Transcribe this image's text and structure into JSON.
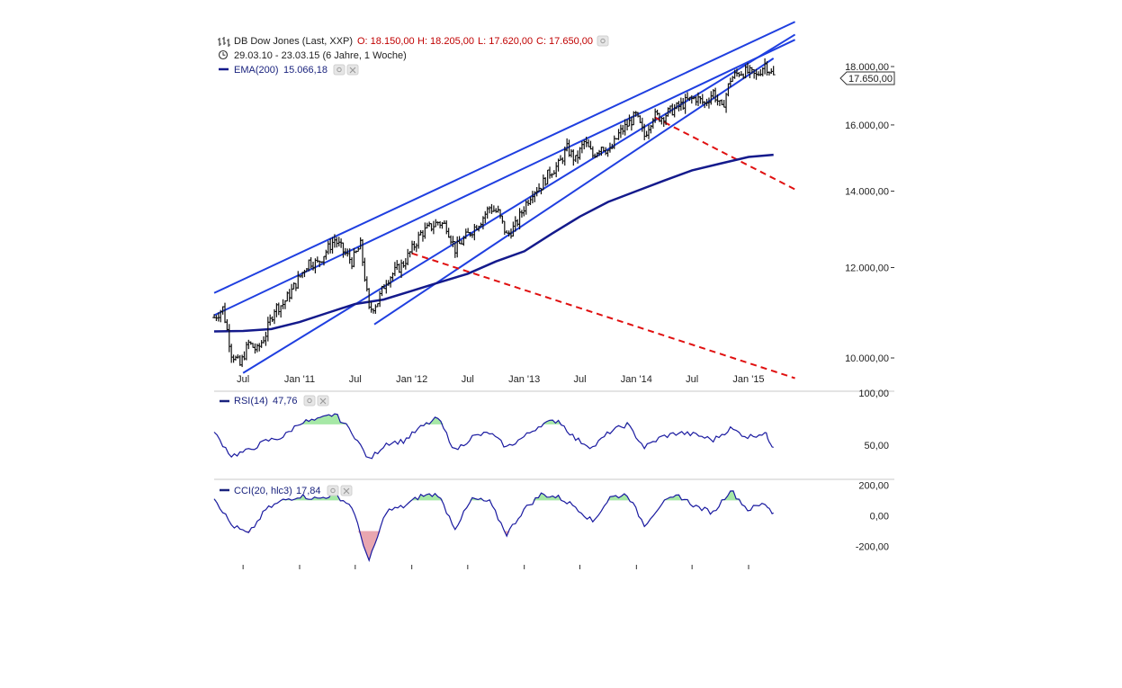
{
  "header": {
    "instrument": "DB Dow Jones (Last, XXP)",
    "open": "O: 18.150,00",
    "high": "H: 18.205,00",
    "low": "L: 17.620,00",
    "close": "C: 17.650,00",
    "period": "29.03.10 - 23.03.15 (6 Jahre, 1 Woche)",
    "ema_label": "EMA(200)",
    "ema_value": "15.066,18"
  },
  "rsi": {
    "label": "RSI(14)",
    "value": "47,76"
  },
  "cci": {
    "label": "CCI(20, hlc3)",
    "value": "17,84"
  },
  "colors": {
    "price": "#111111",
    "trendline": "#1f3fe0",
    "ema": "#141a8c",
    "dashed": "#e01010",
    "indicator": "#1a1aa0",
    "fill_high": "#a6e8a6",
    "fill_low": "#e8a6b0"
  },
  "icons": [
    "ohlc-icon",
    "clock-icon",
    "settings-icon",
    "close-icon"
  ],
  "chart_data": [
    {
      "type": "line",
      "panel": "price",
      "y_scale": "log",
      "ylim": [
        9500,
        19500
      ],
      "y_ticks": [
        "18.000,00",
        "16.000,00",
        "14.000,00",
        "12.000,00",
        "10.000,00"
      ],
      "y_tick_values": [
        18000,
        16000,
        14000,
        12000,
        10000
      ],
      "last_price_label": "17.650,00",
      "last_price": 17650,
      "x_range": [
        "2010-03-29",
        "2015-03-23"
      ],
      "x_ticks": [
        "Jul",
        "Jan '11",
        "Jul",
        "Jan '12",
        "Jul",
        "Jan '13",
        "Jul",
        "Jan '14",
        "Jul",
        "Jan '15"
      ],
      "x_tick_dates": [
        "2010-07-01",
        "2011-01-01",
        "2011-07-01",
        "2012-01-01",
        "2012-07-01",
        "2013-01-01",
        "2013-07-01",
        "2014-01-01",
        "2014-07-01",
        "2015-01-01"
      ],
      "series": [
        {
          "name": "DB Dow Jones",
          "style": "ohlc",
          "x": [
            "2010-03-29",
            "2010-04-26",
            "2010-05-24",
            "2010-06-21",
            "2010-07-19",
            "2010-08-16",
            "2010-09-13",
            "2010-10-11",
            "2010-11-08",
            "2010-12-06",
            "2011-01-03",
            "2011-01-31",
            "2011-02-28",
            "2011-03-28",
            "2011-04-25",
            "2011-05-23",
            "2011-06-20",
            "2011-07-18",
            "2011-08-15",
            "2011-09-12",
            "2011-10-10",
            "2011-11-07",
            "2011-12-05",
            "2012-01-02",
            "2012-01-30",
            "2012-02-27",
            "2012-03-26",
            "2012-04-23",
            "2012-05-21",
            "2012-06-18",
            "2012-07-16",
            "2012-08-13",
            "2012-09-10",
            "2012-10-08",
            "2012-11-05",
            "2012-12-03",
            "2012-12-31",
            "2013-01-28",
            "2013-02-25",
            "2013-03-25",
            "2013-04-22",
            "2013-05-20",
            "2013-06-17",
            "2013-07-15",
            "2013-08-12",
            "2013-09-09",
            "2013-10-07",
            "2013-11-04",
            "2013-12-02",
            "2013-12-30",
            "2014-01-27",
            "2014-02-24",
            "2014-03-24",
            "2014-04-21",
            "2014-05-19",
            "2014-06-16",
            "2014-07-14",
            "2014-08-11",
            "2014-09-08",
            "2014-10-06",
            "2014-11-03",
            "2014-12-01",
            "2014-12-29",
            "2015-01-26",
            "2015-02-23",
            "2015-03-23"
          ],
          "close": [
            10850,
            11050,
            10100,
            9850,
            10300,
            10150,
            10500,
            11050,
            11150,
            11450,
            11800,
            12150,
            12100,
            12400,
            12700,
            12400,
            12150,
            12550,
            11000,
            11200,
            11700,
            11900,
            12100,
            12450,
            12850,
            13000,
            13150,
            13050,
            12450,
            12700,
            12950,
            13200,
            13550,
            13400,
            12800,
            13050,
            13550,
            14000,
            14150,
            14550,
            14750,
            15250,
            14900,
            15450,
            15050,
            15350,
            15150,
            15700,
            16000,
            16300,
            15650,
            16300,
            16250,
            16450,
            16600,
            16800,
            16900,
            16700,
            17100,
            16500,
            17550,
            17800,
            17800,
            17650,
            18100,
            17650
          ]
        },
        {
          "name": "EMA(200)",
          "x": [
            "2010-03-29",
            "2010-07-01",
            "2010-10-01",
            "2011-01-01",
            "2011-04-01",
            "2011-07-01",
            "2011-10-01",
            "2012-01-01",
            "2012-04-01",
            "2012-07-01",
            "2012-10-01",
            "2013-01-01",
            "2013-04-01",
            "2013-07-01",
            "2013-10-01",
            "2014-01-01",
            "2014-04-01",
            "2014-07-01",
            "2014-10-01",
            "2015-01-01",
            "2015-03-23"
          ],
          "values": [
            10550,
            10560,
            10600,
            10750,
            10950,
            11150,
            11250,
            11450,
            11650,
            11850,
            12150,
            12400,
            12850,
            13300,
            13700,
            14000,
            14300,
            14600,
            14800,
            15000,
            15066
          ]
        }
      ],
      "trendlines": [
        {
          "style": "solid",
          "from": [
            "2010-03-29",
            11400
          ],
          "to": [
            "2015-06-01",
            19700
          ]
        },
        {
          "style": "solid",
          "from": [
            "2010-03-29",
            10900
          ],
          "to": [
            "2015-06-01",
            19000
          ]
        },
        {
          "style": "solid",
          "from": [
            "2010-07-01",
            9700
          ],
          "to": [
            "2015-06-01",
            19200
          ]
        },
        {
          "style": "solid",
          "from": [
            "2011-09-01",
            10700
          ],
          "to": [
            "2015-03-23",
            18300
          ]
        },
        {
          "style": "dashed",
          "from": [
            "2012-01-01",
            12350
          ],
          "to": [
            "2015-06-01",
            9600
          ]
        },
        {
          "style": "dashed",
          "from": [
            "2014-03-01",
            16250
          ],
          "to": [
            "2015-06-01",
            14050
          ]
        }
      ]
    },
    {
      "type": "line",
      "panel": "RSI",
      "series_name": "RSI(14)",
      "ylim": [
        20,
        100
      ],
      "y_ticks": [
        "100,00",
        "50,00"
      ],
      "y_tick_values": [
        100,
        50
      ],
      "x": [
        "2010-03-29",
        "2010-05-24",
        "2010-07-19",
        "2010-09-13",
        "2010-11-08",
        "2011-01-03",
        "2011-02-28",
        "2011-04-25",
        "2011-06-20",
        "2011-08-15",
        "2011-10-10",
        "2011-12-05",
        "2012-01-30",
        "2012-03-26",
        "2012-05-21",
        "2012-07-16",
        "2012-09-10",
        "2012-11-05",
        "2012-12-31",
        "2013-02-25",
        "2013-04-22",
        "2013-06-17",
        "2013-08-12",
        "2013-10-07",
        "2013-12-02",
        "2014-01-27",
        "2014-03-24",
        "2014-05-19",
        "2014-07-14",
        "2014-09-08",
        "2014-11-03",
        "2014-12-29",
        "2015-02-23",
        "2015-03-23"
      ],
      "values": [
        62,
        40,
        45,
        54,
        58,
        72,
        74,
        80,
        63,
        36,
        52,
        54,
        67,
        76,
        45,
        58,
        62,
        48,
        58,
        70,
        74,
        56,
        48,
        63,
        70,
        48,
        58,
        62,
        60,
        55,
        66,
        58,
        62,
        48
      ],
      "highlight_above": 70
    },
    {
      "type": "line",
      "panel": "CCI",
      "series_name": "CCI(20, hlc3)",
      "ylim": [
        -320,
        220
      ],
      "y_ticks": [
        "200,00",
        "0,00",
        "-200,00"
      ],
      "y_tick_values": [
        200,
        0,
        -200
      ],
      "x": [
        "2010-03-29",
        "2010-05-24",
        "2010-07-19",
        "2010-09-13",
        "2010-11-08",
        "2011-01-03",
        "2011-02-28",
        "2011-04-25",
        "2011-06-20",
        "2011-08-15",
        "2011-10-10",
        "2011-12-05",
        "2012-01-30",
        "2012-03-26",
        "2012-05-21",
        "2012-07-16",
        "2012-09-10",
        "2012-11-05",
        "2012-12-31",
        "2013-02-25",
        "2013-04-22",
        "2013-06-17",
        "2013-08-12",
        "2013-10-07",
        "2013-12-02",
        "2014-01-27",
        "2014-03-24",
        "2014-05-19",
        "2014-07-14",
        "2014-09-08",
        "2014-11-03",
        "2014-12-29",
        "2015-02-23",
        "2015-03-23"
      ],
      "values": [
        120,
        -60,
        -120,
        40,
        100,
        130,
        110,
        140,
        60,
        -300,
        30,
        60,
        130,
        140,
        -80,
        110,
        90,
        -120,
        40,
        140,
        120,
        60,
        -40,
        120,
        140,
        -60,
        80,
        130,
        60,
        20,
        170,
        40,
        80,
        18
      ],
      "highlight_above": 100,
      "highlight_below": -100
    }
  ]
}
